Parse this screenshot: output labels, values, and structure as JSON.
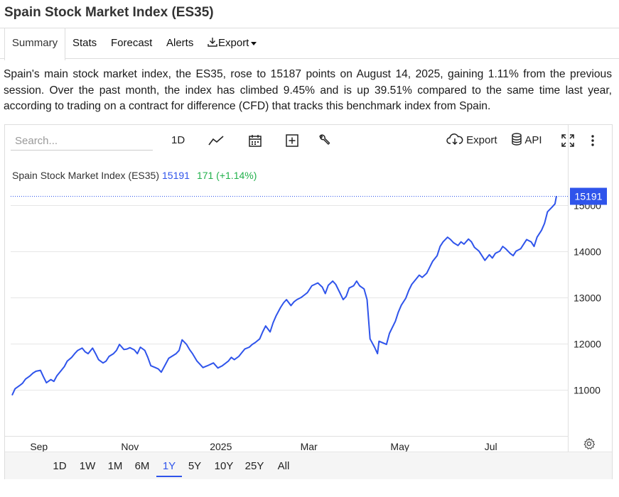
{
  "page": {
    "title": "Spain Stock Market Index (ES35)"
  },
  "tabs": [
    {
      "label": "Summary",
      "active": true
    },
    {
      "label": "Stats"
    },
    {
      "label": "Forecast"
    },
    {
      "label": "Alerts"
    },
    {
      "label": "Export"
    }
  ],
  "summary": "Spain's main stock market index, the ES35, rose to 15187 points on August 14, 2025, gaining 1.11% from the previous session. Over the past month, the index has climbed 9.45% and is up 39.51% compared to the same time last year, according to trading on a contract for difference (CFD) that tracks this benchmark index from Spain.",
  "toolbar": {
    "search_placeholder": "Search...",
    "interval_label": "1D",
    "export_label": "Export",
    "api_label": "API",
    "icons": [
      "line-chart-icon",
      "calendar-icon",
      "plus-box-icon",
      "wrench-icon",
      "cloud-download-icon",
      "database-icon",
      "fullscreen-icon",
      "more-vertical-icon",
      "gear-icon"
    ]
  },
  "legend": {
    "name": "Spain Stock Market Index (ES35)",
    "value": "15191",
    "change": "171 (+1.14%)"
  },
  "last_price_label": "15191",
  "colors": {
    "line": "#2f54eb",
    "change_positive": "#22b14c",
    "price_tag": "#2f54eb",
    "grid": "#e6e6e6"
  },
  "range_buttons": [
    {
      "label": "1D"
    },
    {
      "label": "1W"
    },
    {
      "label": "1M"
    },
    {
      "label": "6M"
    },
    {
      "label": "1Y",
      "active": true
    },
    {
      "label": "5Y"
    },
    {
      "label": "10Y"
    },
    {
      "label": "25Y"
    },
    {
      "label": "All"
    }
  ],
  "chart_data": {
    "type": "line",
    "title": "",
    "xlabel": "",
    "ylabel": "",
    "x_ticks": [
      "Sep",
      "Nov",
      "2025",
      "Mar",
      "May",
      "Jul"
    ],
    "y_ticks": [
      11000,
      12000,
      13000,
      14000,
      15000
    ],
    "ylim": [
      10000,
      15500
    ],
    "xlim": [
      "2024-08-14",
      "2025-08-14"
    ],
    "grid": true,
    "series": [
      {
        "name": "Spain Stock Market Index (ES35)",
        "points": [
          [
            "2024-08-14",
            10880
          ],
          [
            "2024-08-16",
            11020
          ],
          [
            "2024-08-19",
            11090
          ],
          [
            "2024-08-21",
            11140
          ],
          [
            "2024-08-23",
            11230
          ],
          [
            "2024-08-26",
            11300
          ],
          [
            "2024-08-28",
            11360
          ],
          [
            "2024-08-30",
            11400
          ],
          [
            "2024-09-02",
            11420
          ],
          [
            "2024-09-04",
            11280
          ],
          [
            "2024-09-06",
            11150
          ],
          [
            "2024-09-09",
            11220
          ],
          [
            "2024-09-11",
            11180
          ],
          [
            "2024-09-13",
            11300
          ],
          [
            "2024-09-16",
            11420
          ],
          [
            "2024-09-18",
            11500
          ],
          [
            "2024-09-20",
            11620
          ],
          [
            "2024-09-23",
            11700
          ],
          [
            "2024-09-25",
            11780
          ],
          [
            "2024-09-27",
            11850
          ],
          [
            "2024-09-30",
            11900
          ],
          [
            "2024-10-02",
            11820
          ],
          [
            "2024-10-04",
            11780
          ],
          [
            "2024-10-07",
            11900
          ],
          [
            "2024-10-09",
            11780
          ],
          [
            "2024-10-11",
            11650
          ],
          [
            "2024-10-14",
            11580
          ],
          [
            "2024-10-16",
            11620
          ],
          [
            "2024-10-18",
            11720
          ],
          [
            "2024-10-21",
            11780
          ],
          [
            "2024-10-23",
            11850
          ],
          [
            "2024-10-25",
            11980
          ],
          [
            "2024-10-28",
            11870
          ],
          [
            "2024-10-30",
            11880
          ],
          [
            "2024-11-01",
            11910
          ],
          [
            "2024-11-04",
            11860
          ],
          [
            "2024-11-06",
            11780
          ],
          [
            "2024-11-08",
            11920
          ],
          [
            "2024-11-11",
            11850
          ],
          [
            "2024-11-13",
            11700
          ],
          [
            "2024-11-15",
            11520
          ],
          [
            "2024-11-18",
            11480
          ],
          [
            "2024-11-20",
            11450
          ],
          [
            "2024-11-22",
            11380
          ],
          [
            "2024-11-25",
            11560
          ],
          [
            "2024-11-27",
            11680
          ],
          [
            "2024-11-29",
            11720
          ],
          [
            "2024-12-02",
            11780
          ],
          [
            "2024-12-04",
            11850
          ],
          [
            "2024-12-06",
            12080
          ],
          [
            "2024-12-09",
            11980
          ],
          [
            "2024-12-11",
            11870
          ],
          [
            "2024-12-13",
            11780
          ],
          [
            "2024-12-16",
            11620
          ],
          [
            "2024-12-18",
            11550
          ],
          [
            "2024-12-20",
            11480
          ],
          [
            "2024-12-23",
            11520
          ],
          [
            "2024-12-27",
            11580
          ],
          [
            "2024-12-30",
            11470
          ],
          [
            "2025-01-02",
            11520
          ],
          [
            "2025-01-06",
            11620
          ],
          [
            "2025-01-08",
            11700
          ],
          [
            "2025-01-10",
            11650
          ],
          [
            "2025-01-13",
            11720
          ],
          [
            "2025-01-15",
            11800
          ],
          [
            "2025-01-17",
            11880
          ],
          [
            "2025-01-20",
            11920
          ],
          [
            "2025-01-22",
            11980
          ],
          [
            "2025-01-24",
            12020
          ],
          [
            "2025-01-27",
            12100
          ],
          [
            "2025-01-29",
            12250
          ],
          [
            "2025-01-31",
            12380
          ],
          [
            "2025-02-03",
            12250
          ],
          [
            "2025-02-05",
            12450
          ],
          [
            "2025-02-07",
            12600
          ],
          [
            "2025-02-10",
            12780
          ],
          [
            "2025-02-12",
            12880
          ],
          [
            "2025-02-14",
            12950
          ],
          [
            "2025-02-17",
            12820
          ],
          [
            "2025-02-19",
            12900
          ],
          [
            "2025-02-21",
            12950
          ],
          [
            "2025-02-24",
            13000
          ],
          [
            "2025-02-26",
            13050
          ],
          [
            "2025-02-28",
            13100
          ],
          [
            "2025-03-03",
            13250
          ],
          [
            "2025-03-05",
            13280
          ],
          [
            "2025-03-07",
            13310
          ],
          [
            "2025-03-10",
            13220
          ],
          [
            "2025-03-12",
            13080
          ],
          [
            "2025-03-14",
            13260
          ],
          [
            "2025-03-17",
            13350
          ],
          [
            "2025-03-19",
            13280
          ],
          [
            "2025-03-21",
            13150
          ],
          [
            "2025-03-24",
            12950
          ],
          [
            "2025-03-26",
            13020
          ],
          [
            "2025-03-28",
            13200
          ],
          [
            "2025-03-31",
            13250
          ],
          [
            "2025-04-02",
            13350
          ],
          [
            "2025-04-04",
            13250
          ],
          [
            "2025-04-07",
            13180
          ],
          [
            "2025-04-09",
            12950
          ],
          [
            "2025-04-11",
            12100
          ],
          [
            "2025-04-14",
            11920
          ],
          [
            "2025-04-16",
            11780
          ],
          [
            "2025-04-17",
            12050
          ],
          [
            "2025-04-22",
            11980
          ],
          [
            "2025-04-24",
            12220
          ],
          [
            "2025-04-28",
            12480
          ],
          [
            "2025-04-30",
            12680
          ],
          [
            "2025-05-02",
            12830
          ],
          [
            "2025-05-05",
            12980
          ],
          [
            "2025-05-07",
            13150
          ],
          [
            "2025-05-09",
            13280
          ],
          [
            "2025-05-12",
            13400
          ],
          [
            "2025-05-14",
            13480
          ],
          [
            "2025-05-16",
            13430
          ],
          [
            "2025-05-19",
            13520
          ],
          [
            "2025-05-21",
            13650
          ],
          [
            "2025-05-23",
            13780
          ],
          [
            "2025-05-26",
            13900
          ],
          [
            "2025-05-28",
            14100
          ],
          [
            "2025-05-30",
            14200
          ],
          [
            "2025-06-02",
            14300
          ],
          [
            "2025-06-04",
            14250
          ],
          [
            "2025-06-06",
            14180
          ],
          [
            "2025-06-09",
            14120
          ],
          [
            "2025-06-11",
            14200
          ],
          [
            "2025-06-13",
            14150
          ],
          [
            "2025-06-16",
            14260
          ],
          [
            "2025-06-18",
            14200
          ],
          [
            "2025-06-20",
            14080
          ],
          [
            "2025-06-23",
            14000
          ],
          [
            "2025-06-25",
            13900
          ],
          [
            "2025-06-27",
            13800
          ],
          [
            "2025-06-30",
            13920
          ],
          [
            "2025-07-02",
            13850
          ],
          [
            "2025-07-04",
            13950
          ],
          [
            "2025-07-07",
            14000
          ],
          [
            "2025-07-09",
            14100
          ],
          [
            "2025-07-11",
            14050
          ],
          [
            "2025-07-14",
            13950
          ],
          [
            "2025-07-16",
            13900
          ],
          [
            "2025-07-18",
            14000
          ],
          [
            "2025-07-21",
            14050
          ],
          [
            "2025-07-23",
            14150
          ],
          [
            "2025-07-25",
            14250
          ],
          [
            "2025-07-28",
            14200
          ],
          [
            "2025-07-30",
            14100
          ],
          [
            "2025-08-01",
            14300
          ],
          [
            "2025-08-04",
            14450
          ],
          [
            "2025-08-06",
            14600
          ],
          [
            "2025-08-08",
            14850
          ],
          [
            "2025-08-11",
            14950
          ],
          [
            "2025-08-13",
            15020
          ],
          [
            "2025-08-14",
            15191
          ]
        ]
      }
    ],
    "last_value": 15191
  }
}
